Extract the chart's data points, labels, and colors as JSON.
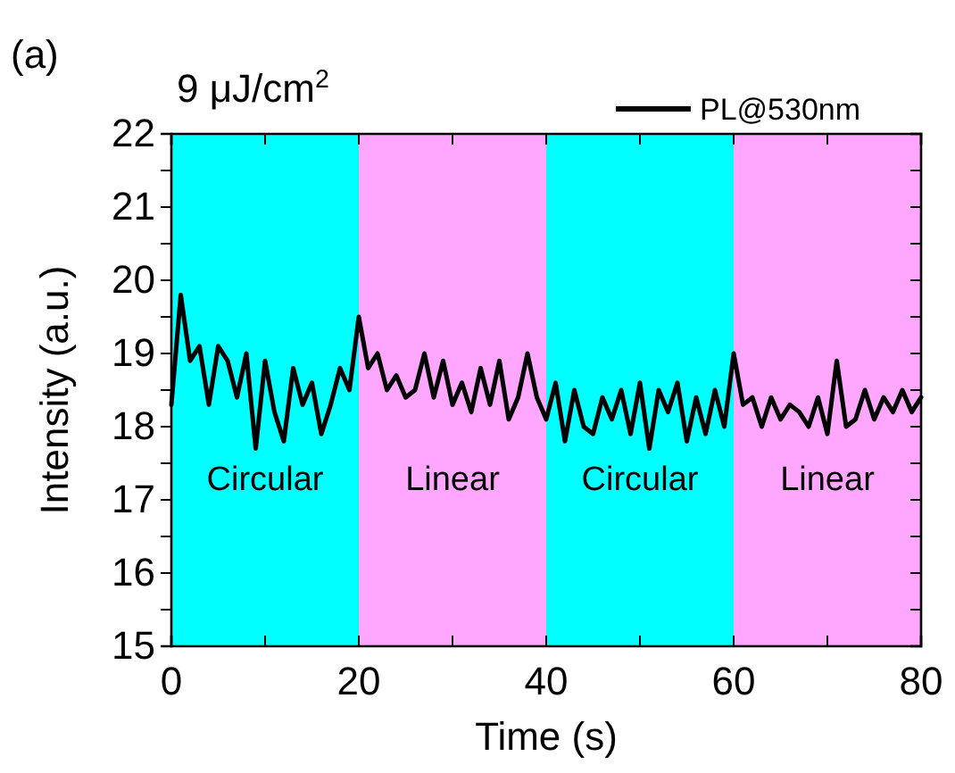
{
  "chart_data": {
    "type": "line",
    "xlabel": "Time (s)",
    "ylabel": "Intensity (a.u.)",
    "x": [
      0,
      1,
      2,
      3,
      4,
      5,
      6,
      7,
      8,
      9,
      10,
      11,
      12,
      13,
      14,
      15,
      16,
      17,
      18,
      19,
      20,
      21,
      22,
      23,
      24,
      25,
      26,
      27,
      28,
      29,
      30,
      31,
      32,
      33,
      34,
      35,
      36,
      37,
      38,
      39,
      40,
      41,
      42,
      43,
      44,
      45,
      46,
      47,
      48,
      49,
      50,
      51,
      52,
      53,
      54,
      55,
      56,
      57,
      58,
      59,
      60,
      61,
      62,
      63,
      64,
      65,
      66,
      67,
      68,
      69,
      70,
      71,
      72,
      73,
      74,
      75,
      76,
      77,
      78,
      79,
      80
    ],
    "series": [
      {
        "name": "PL@530nm",
        "color": "#000000",
        "values": [
          18.3,
          19.8,
          18.9,
          19.1,
          18.3,
          19.1,
          18.9,
          18.4,
          19.0,
          17.7,
          18.9,
          18.2,
          17.8,
          18.8,
          18.3,
          18.6,
          17.9,
          18.3,
          18.8,
          18.5,
          19.5,
          18.8,
          19.0,
          18.5,
          18.7,
          18.4,
          18.5,
          19.0,
          18.4,
          18.9,
          18.3,
          18.6,
          18.2,
          18.8,
          18.3,
          18.9,
          18.1,
          18.4,
          19.0,
          18.4,
          18.1,
          18.6,
          17.8,
          18.5,
          18.0,
          17.9,
          18.4,
          18.1,
          18.5,
          17.9,
          18.6,
          17.7,
          18.5,
          18.2,
          18.6,
          17.8,
          18.4,
          17.9,
          18.5,
          18.0,
          19.0,
          18.3,
          18.4,
          18.0,
          18.4,
          18.1,
          18.3,
          18.2,
          18.0,
          18.4,
          17.9,
          18.9,
          18.0,
          18.1,
          18.5,
          18.1,
          18.4,
          18.2,
          18.5,
          18.2,
          18.4
        ]
      }
    ],
    "xlim": [
      0,
      80
    ],
    "xticks": [
      0,
      {
        "value": 10,
        "label": null
      },
      20,
      {
        "value": 30,
        "label": null
      },
      40,
      {
        "value": 50,
        "label": null
      },
      60,
      {
        "value": 70,
        "label": null
      },
      80
    ],
    "ylim": [
      15,
      22
    ],
    "yticks": [
      15,
      {
        "value": 15.5,
        "label": null
      },
      16,
      {
        "value": 16.5,
        "label": null
      },
      17,
      {
        "value": 17.5,
        "label": null
      },
      18,
      {
        "value": 18.5,
        "label": null
      },
      19,
      {
        "value": 19.5,
        "label": null
      },
      20,
      {
        "value": 20.5,
        "label": null
      },
      21,
      {
        "value": 21.5,
        "label": null
      },
      22
    ],
    "bands": [
      {
        "axis": "x",
        "from": 0,
        "to": 20,
        "label": "Circular",
        "color": "#00ffff"
      },
      {
        "axis": "x",
        "from": 20,
        "to": 40,
        "label": "Linear",
        "color": "#ffa6ff"
      },
      {
        "axis": "x",
        "from": 40,
        "to": 60,
        "label": "Circular",
        "color": "#00ffff"
      },
      {
        "axis": "x",
        "from": 60,
        "to": 80,
        "label": "Linear",
        "color": "#ffa6ff"
      }
    ],
    "annotations": [
      "(a)",
      "9 μJ/cm$^{2}$"
    ],
    "legend": "top right",
    "grid": false,
    "line_style": "solid",
    "marker": "none"
  }
}
